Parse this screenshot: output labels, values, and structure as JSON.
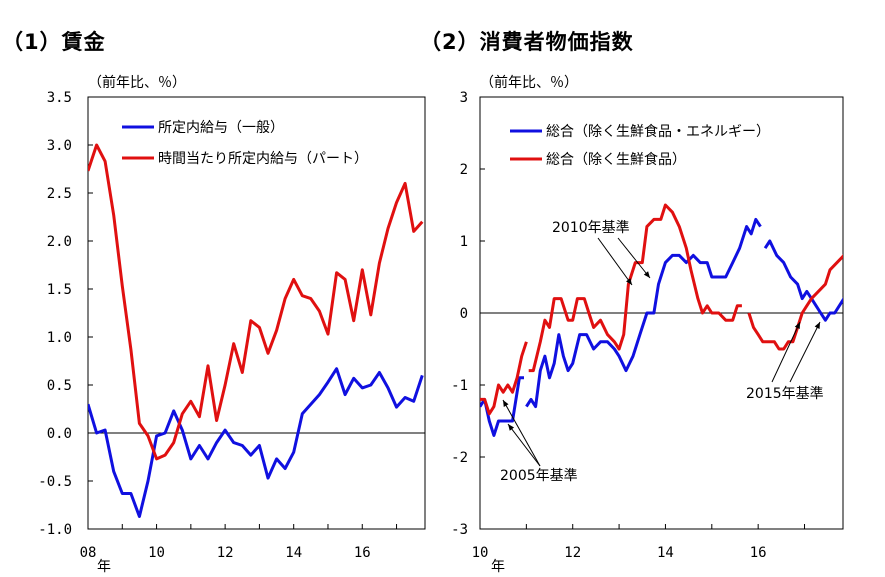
{
  "panel1": {
    "title": "（1）賃金",
    "unit": "（前年比、％）",
    "chart_data": {
      "type": "line",
      "xlabel": "年",
      "x_range": [
        2008.0,
        2017.83
      ],
      "ylim": [
        -1.0,
        3.5
      ],
      "yticks": [
        "3.5",
        "3.0",
        "2.5",
        "2.0",
        "1.5",
        "1.0",
        "0.5",
        "0.0",
        "-0.5",
        "-1.0"
      ],
      "ytick_values": [
        3.5,
        3.0,
        2.5,
        2.0,
        1.5,
        1.0,
        0.5,
        0.0,
        -0.5,
        -1.0
      ],
      "xticks": [
        "08",
        "10",
        "12",
        "14",
        "16"
      ],
      "xtick_values": [
        2008,
        2010,
        2012,
        2014,
        2016
      ],
      "series": [
        {
          "name": "所定内給与（一般）",
          "color": "#1010e0",
          "points": [
            [
              2008.0,
              0.3
            ],
            [
              2008.25,
              0.0
            ],
            [
              2008.5,
              0.03
            ],
            [
              2008.75,
              -0.4
            ],
            [
              2009.0,
              -0.63
            ],
            [
              2009.25,
              -0.63
            ],
            [
              2009.5,
              -0.87
            ],
            [
              2009.75,
              -0.5
            ],
            [
              2010.0,
              -0.03
            ],
            [
              2010.25,
              0.0
            ],
            [
              2010.5,
              0.23
            ],
            [
              2010.75,
              0.03
            ],
            [
              2011.0,
              -0.27
            ],
            [
              2011.25,
              -0.13
            ],
            [
              2011.5,
              -0.27
            ],
            [
              2011.75,
              -0.1
            ],
            [
              2012.0,
              0.03
            ],
            [
              2012.25,
              -0.1
            ],
            [
              2012.5,
              -0.13
            ],
            [
              2012.75,
              -0.23
            ],
            [
              2013.0,
              -0.13
            ],
            [
              2013.25,
              -0.47
            ],
            [
              2013.5,
              -0.27
            ],
            [
              2013.75,
              -0.37
            ],
            [
              2014.0,
              -0.2
            ],
            [
              2014.25,
              0.2
            ],
            [
              2014.5,
              0.3
            ],
            [
              2014.75,
              0.4
            ],
            [
              2015.0,
              0.53
            ],
            [
              2015.25,
              0.67
            ],
            [
              2015.5,
              0.4
            ],
            [
              2015.75,
              0.57
            ],
            [
              2016.0,
              0.47
            ],
            [
              2016.25,
              0.5
            ],
            [
              2016.5,
              0.63
            ],
            [
              2016.75,
              0.47
            ],
            [
              2017.0,
              0.27
            ],
            [
              2017.25,
              0.37
            ],
            [
              2017.5,
              0.33
            ],
            [
              2017.75,
              0.6
            ]
          ]
        },
        {
          "name": "時間当たり所定内給与（パート）",
          "color": "#e01010",
          "points": [
            [
              2008.0,
              2.73
            ],
            [
              2008.25,
              3.0
            ],
            [
              2008.5,
              2.83
            ],
            [
              2008.75,
              2.27
            ],
            [
              2009.0,
              1.53
            ],
            [
              2009.25,
              0.87
            ],
            [
              2009.5,
              0.1
            ],
            [
              2009.75,
              -0.03
            ],
            [
              2010.0,
              -0.27
            ],
            [
              2010.25,
              -0.23
            ],
            [
              2010.5,
              -0.1
            ],
            [
              2010.75,
              0.2
            ],
            [
              2011.0,
              0.33
            ],
            [
              2011.25,
              0.17
            ],
            [
              2011.5,
              0.7
            ],
            [
              2011.75,
              0.13
            ],
            [
              2012.0,
              0.5
            ],
            [
              2012.25,
              0.93
            ],
            [
              2012.5,
              0.63
            ],
            [
              2012.75,
              1.17
            ],
            [
              2013.0,
              1.1
            ],
            [
              2013.25,
              0.83
            ],
            [
              2013.5,
              1.07
            ],
            [
              2013.75,
              1.4
            ],
            [
              2014.0,
              1.6
            ],
            [
              2014.25,
              1.43
            ],
            [
              2014.5,
              1.4
            ],
            [
              2014.75,
              1.27
            ],
            [
              2015.0,
              1.03
            ],
            [
              2015.25,
              1.67
            ],
            [
              2015.5,
              1.6
            ],
            [
              2015.75,
              1.17
            ],
            [
              2016.0,
              1.7
            ],
            [
              2016.25,
              1.23
            ],
            [
              2016.5,
              1.77
            ],
            [
              2016.75,
              2.13
            ],
            [
              2017.0,
              2.4
            ],
            [
              2017.25,
              2.6
            ],
            [
              2017.5,
              2.1
            ],
            [
              2017.75,
              2.2
            ]
          ]
        }
      ]
    }
  },
  "panel2": {
    "title": "（2）消費者物価指数",
    "unit": "（前年比、％）",
    "chart_data": {
      "type": "line",
      "xlabel": "年",
      "x_range": [
        2010.0,
        2017.83
      ],
      "ylim": [
        -3,
        3
      ],
      "yticks": [
        "3",
        "2",
        "1",
        "0",
        "-1",
        "-2",
        "-3"
      ],
      "ytick_values": [
        3,
        2,
        1,
        0,
        -1,
        -2,
        -3
      ],
      "xticks": [
        "10",
        "12",
        "14",
        "16"
      ],
      "xtick_values": [
        2010,
        2012,
        2014,
        2016
      ],
      "annotations": [
        "2005年基準",
        "2010年基準",
        "2015年基準"
      ],
      "series": [
        {
          "name": "総合（除く生鮮食品・エネルギー）",
          "color": "#1010e0",
          "segments": [
            [
              [
                2010.0,
                -1.3
              ],
              [
                2010.1,
                -1.2
              ],
              [
                2010.2,
                -1.5
              ],
              [
                2010.3,
                -1.7
              ],
              [
                2010.4,
                -1.5
              ],
              [
                2010.55,
                -1.5
              ],
              [
                2010.7,
                -1.5
              ],
              [
                2010.85,
                -0.9
              ],
              [
                2010.95,
                -0.9
              ]
            ],
            [
              [
                2011.0,
                -1.3
              ],
              [
                2011.1,
                -1.2
              ],
              [
                2011.2,
                -1.3
              ],
              [
                2011.3,
                -0.8
              ],
              [
                2011.4,
                -0.6
              ],
              [
                2011.5,
                -0.9
              ],
              [
                2011.6,
                -0.7
              ],
              [
                2011.7,
                -0.3
              ],
              [
                2011.8,
                -0.6
              ],
              [
                2011.9,
                -0.8
              ],
              [
                2012.0,
                -0.7
              ],
              [
                2012.15,
                -0.3
              ],
              [
                2012.3,
                -0.3
              ],
              [
                2012.45,
                -0.5
              ],
              [
                2012.6,
                -0.4
              ],
              [
                2012.75,
                -0.4
              ],
              [
                2012.9,
                -0.5
              ],
              [
                2013.0,
                -0.6
              ],
              [
                2013.15,
                -0.8
              ],
              [
                2013.3,
                -0.6
              ],
              [
                2013.45,
                -0.3
              ],
              [
                2013.6,
                0.0
              ],
              [
                2013.75,
                0.0
              ],
              [
                2013.85,
                0.4
              ],
              [
                2014.0,
                0.7
              ],
              [
                2014.15,
                0.8
              ],
              [
                2014.3,
                0.8
              ],
              [
                2014.45,
                0.7
              ],
              [
                2014.6,
                0.8
              ],
              [
                2014.75,
                0.7
              ],
              [
                2014.9,
                0.7
              ],
              [
                2015.0,
                0.5
              ],
              [
                2015.15,
                0.5
              ],
              [
                2015.3,
                0.5
              ],
              [
                2015.45,
                0.7
              ],
              [
                2015.6,
                0.9
              ],
              [
                2015.75,
                1.2
              ],
              [
                2015.85,
                1.1
              ],
              [
                2015.95,
                1.3
              ],
              [
                2016.05,
                1.2
              ]
            ],
            [
              [
                2016.15,
                0.9
              ],
              [
                2016.25,
                1.0
              ],
              [
                2016.4,
                0.8
              ],
              [
                2016.55,
                0.7
              ],
              [
                2016.7,
                0.5
              ],
              [
                2016.85,
                0.4
              ],
              [
                2016.95,
                0.2
              ],
              [
                2017.05,
                0.3
              ],
              [
                2017.15,
                0.2
              ],
              [
                2017.25,
                0.1
              ],
              [
                2017.35,
                0.0
              ],
              [
                2017.45,
                -0.1
              ],
              [
                2017.55,
                0.0
              ],
              [
                2017.65,
                0.0
              ],
              [
                2017.75,
                0.1
              ],
              [
                2017.85,
                0.2
              ],
              [
                2017.95,
                0.2
              ],
              [
                2018.05,
                0.3
              ],
              [
                2018.15,
                0.3
              ]
            ]
          ]
        },
        {
          "name": "総合（除く生鮮食品）",
          "color": "#e01010",
          "segments": [
            [
              [
                2010.0,
                -1.2
              ],
              [
                2010.1,
                -1.2
              ],
              [
                2010.2,
                -1.4
              ],
              [
                2010.3,
                -1.3
              ],
              [
                2010.4,
                -1.0
              ],
              [
                2010.5,
                -1.1
              ],
              [
                2010.6,
                -1.0
              ],
              [
                2010.7,
                -1.1
              ],
              [
                2010.8,
                -0.9
              ],
              [
                2010.9,
                -0.6
              ],
              [
                2011.0,
                -0.4
              ]
            ],
            [
              [
                2011.05,
                -0.8
              ],
              [
                2011.15,
                -0.8
              ],
              [
                2011.3,
                -0.4
              ],
              [
                2011.4,
                -0.1
              ],
              [
                2011.5,
                -0.2
              ],
              [
                2011.6,
                0.2
              ],
              [
                2011.75,
                0.2
              ],
              [
                2011.9,
                -0.1
              ],
              [
                2012.0,
                -0.1
              ],
              [
                2012.1,
                0.2
              ],
              [
                2012.25,
                0.2
              ],
              [
                2012.35,
                0.0
              ],
              [
                2012.45,
                -0.2
              ],
              [
                2012.6,
                -0.1
              ],
              [
                2012.75,
                -0.3
              ],
              [
                2012.9,
                -0.4
              ],
              [
                2013.0,
                -0.5
              ],
              [
                2013.1,
                -0.3
              ],
              [
                2013.2,
                0.4
              ],
              [
                2013.35,
                0.7
              ],
              [
                2013.5,
                0.7
              ],
              [
                2013.6,
                1.2
              ],
              [
                2013.75,
                1.3
              ],
              [
                2013.9,
                1.3
              ],
              [
                2014.0,
                1.5
              ],
              [
                2014.15,
                1.4
              ],
              [
                2014.3,
                1.2
              ],
              [
                2014.45,
                0.9
              ],
              [
                2014.55,
                0.6
              ],
              [
                2014.7,
                0.2
              ],
              [
                2014.8,
                0.0
              ],
              [
                2014.9,
                0.1
              ],
              [
                2015.0,
                0.0
              ],
              [
                2015.15,
                0.0
              ],
              [
                2015.3,
                -0.1
              ],
              [
                2015.45,
                -0.1
              ],
              [
                2015.55,
                0.1
              ],
              [
                2015.65,
                0.1
              ]
            ],
            [
              [
                2015.8,
                0.0
              ],
              [
                2015.9,
                -0.2
              ],
              [
                2016.0,
                -0.3
              ],
              [
                2016.1,
                -0.4
              ],
              [
                2016.2,
                -0.4
              ],
              [
                2016.35,
                -0.4
              ],
              [
                2016.45,
                -0.5
              ],
              [
                2016.55,
                -0.5
              ],
              [
                2016.65,
                -0.4
              ],
              [
                2016.75,
                -0.4
              ],
              [
                2016.85,
                -0.2
              ],
              [
                2016.95,
                0.0
              ],
              [
                2017.05,
                0.1
              ],
              [
                2017.15,
                0.2
              ],
              [
                2017.3,
                0.3
              ],
              [
                2017.45,
                0.4
              ],
              [
                2017.55,
                0.6
              ],
              [
                2017.7,
                0.7
              ],
              [
                2017.85,
                0.8
              ],
              [
                2017.95,
                0.9
              ],
              [
                2018.1,
                0.9
              ]
            ]
          ]
        }
      ]
    }
  }
}
